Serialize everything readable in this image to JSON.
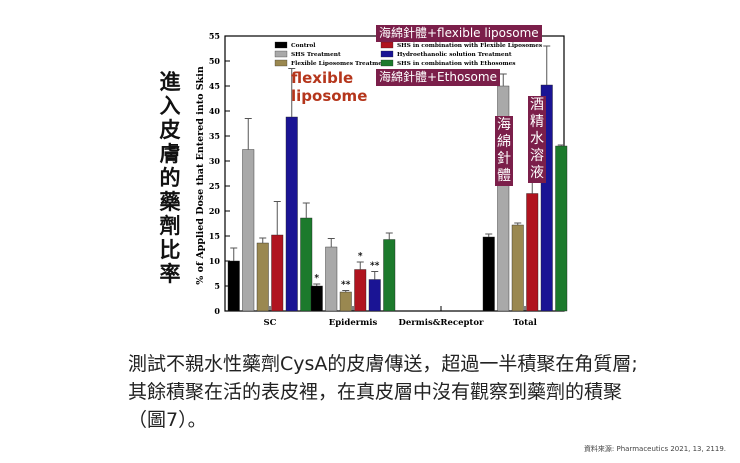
{
  "side_title": "進入皮膚的藥劑比率",
  "annotations": {
    "flexible_red": "flexible liposome",
    "tag_flexible": "海綿針體+flexible liposome",
    "tag_ethosome": "海綿針體+Ethosome",
    "tag_sponge": "海綿針體",
    "tag_hydroethanolic": "酒精水溶液",
    "sig_single": "*",
    "sig_double": "**"
  },
  "caption": "測試不親水性藥劑CysA的皮膚傳送，超過一半積聚在角質層;其餘積聚在活的表皮裡，在真皮層中沒有觀察到藥劑的積聚（圖7）。",
  "source": "資料來源: Pharmaceutics 2021, 13, 2119.",
  "colors": {
    "control": "#000000",
    "shs": "#a9a9a9",
    "flexible": "#9a8850",
    "shs_flexible": "#b0141f",
    "hydroethanolic": "#1a1494",
    "shs_ethosomes": "#1c7a2c",
    "tag_bg": "#7b1f4a",
    "callout_red": "#b5361c"
  },
  "chart_data": {
    "type": "bar",
    "ylabel": "% of Applied Dose that Entered into Skin",
    "xlabel": "",
    "ylim": [
      0,
      55
    ],
    "yticks": [
      0,
      5,
      10,
      15,
      20,
      25,
      30,
      35,
      40,
      45,
      50,
      55
    ],
    "categories": [
      "SC",
      "Epidermis",
      "Dermis&Receptor",
      "Total"
    ],
    "series": [
      {
        "name": "Control",
        "key": "control",
        "values": [
          10.0,
          5.0,
          0,
          14.8
        ],
        "errors": [
          2.6,
          0.4,
          0,
          0.6
        ]
      },
      {
        "name": "SHS Treatment",
        "key": "shs",
        "values": [
          32.3,
          12.8,
          0,
          45.0
        ],
        "errors": [
          6.2,
          1.7,
          0,
          2.4
        ]
      },
      {
        "name": "Flexible Liposomes Treatment",
        "key": "flexible",
        "values": [
          13.6,
          3.8,
          0,
          17.2
        ],
        "errors": [
          1.0,
          0.3,
          0,
          0.4
        ]
      },
      {
        "name": "SHS in combination with Flexible Liposomes",
        "key": "shs_flexible",
        "values": [
          15.2,
          8.3,
          0,
          23.5
        ],
        "errors": [
          6.7,
          1.5,
          0,
          3.8
        ]
      },
      {
        "name": "Hydroethanolic solution Treatment",
        "key": "hydroethanolic",
        "values": [
          38.8,
          6.3,
          0,
          45.2
        ],
        "errors": [
          9.7,
          1.6,
          0,
          7.8
        ]
      },
      {
        "name": "SHS in combination with Ethosomes",
        "key": "shs_ethosomes",
        "values": [
          18.6,
          14.3,
          0,
          33.0
        ],
        "errors": [
          3.0,
          1.3,
          0,
          0.2
        ]
      }
    ],
    "legend": {
      "placement": "top",
      "columns": [
        [
          "Control",
          "SHS Treatment",
          "Flexible Liposomes Treatment"
        ],
        [
          "SHS in combination with Flexible Liposomes",
          "Hydroethanolic solution Treatment",
          "SHS in combination with Ethosomes"
        ]
      ]
    },
    "significance": {
      "Epidermis": {
        "Control": "*",
        "Flexible Liposomes Treatment": "**",
        "SHS in combination with Flexible Liposomes": "*",
        "Hydroethanolic solution Treatment": "**"
      }
    }
  }
}
